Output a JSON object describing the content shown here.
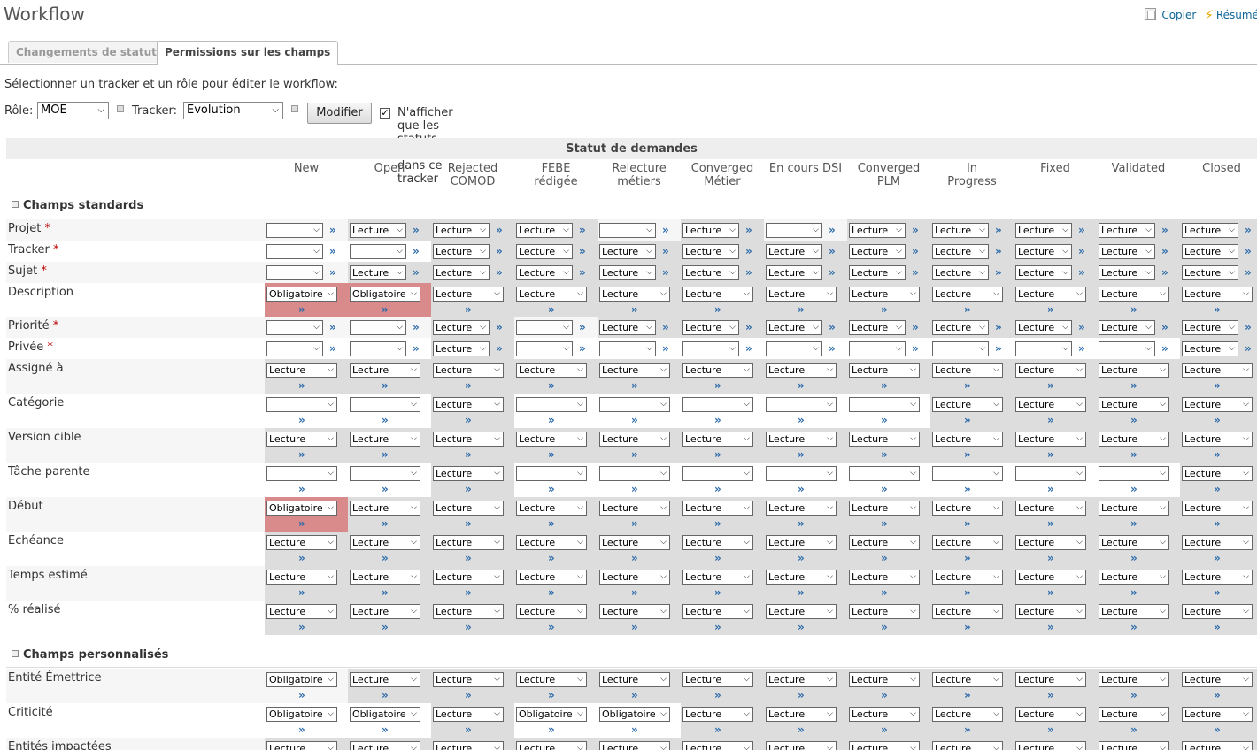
{
  "header": {
    "title": "Workflow",
    "copy_label": "Copier",
    "summary_label": "Résumé"
  },
  "tabs": [
    {
      "label": "Changements de statut"
    },
    {
      "label": "Permissions sur les champs"
    }
  ],
  "intro_text": "Sélectionner un tracker et un rôle pour éditer le workflow:",
  "filters": {
    "role_label": "Rôle:",
    "role_value": "MOE",
    "tracker_label": "Tracker:",
    "tracker_value": "Evolution",
    "submit_label": "Modifier",
    "used_statuses_label": "N'afficher que les statuts utilisés dans ce tracker",
    "used_statuses_checked": true
  },
  "table": {
    "group_header": "Statut de demandes",
    "statuses": [
      "New",
      "Open",
      "Rejected COMOD",
      "FEBE rédigée",
      "Relecture métiers",
      "Converged Métier",
      "En cours DSI",
      "Converged PLM",
      "In Progress",
      "Fixed",
      "Validated",
      "Closed"
    ],
    "sections": [
      {
        "title": "Champs standards",
        "rows": [
          {
            "label": "Projet",
            "required": true,
            "values": [
              "",
              "Lecture",
              "Lecture",
              "Lecture",
              "",
              "Lecture",
              "",
              "Lecture",
              "Lecture",
              "Lecture",
              "Lecture",
              "Lecture"
            ]
          },
          {
            "label": "Tracker",
            "required": true,
            "values": [
              "",
              "",
              "Lecture",
              "Lecture",
              "Lecture",
              "Lecture",
              "Lecture",
              "Lecture",
              "Lecture",
              "Lecture",
              "Lecture",
              "Lecture"
            ]
          },
          {
            "label": "Sujet",
            "required": true,
            "values": [
              "",
              "Lecture",
              "Lecture",
              "Lecture",
              "Lecture",
              "Lecture",
              "Lecture",
              "Lecture",
              "Lecture",
              "Lecture",
              "Lecture",
              "Lecture"
            ]
          },
          {
            "label": "Description",
            "required": false,
            "values": [
              "Obligatoire",
              "Obligatoire",
              "Lecture",
              "Lecture",
              "Lecture",
              "Lecture",
              "Lecture",
              "Lecture",
              "Lecture",
              "Lecture",
              "Lecture",
              "Lecture"
            ]
          },
          {
            "label": "Priorité",
            "required": true,
            "values": [
              "",
              "",
              "Lecture",
              "",
              "Lecture",
              "Lecture",
              "Lecture",
              "Lecture",
              "Lecture",
              "Lecture",
              "Lecture",
              "Lecture"
            ]
          },
          {
            "label": "Privée",
            "required": true,
            "values": [
              "",
              "",
              "Lecture",
              "",
              "",
              "",
              "",
              "",
              "",
              "",
              "",
              "Lecture"
            ]
          },
          {
            "label": "Assigné à",
            "required": false,
            "values": [
              "Lecture",
              "Lecture",
              "Lecture",
              "Lecture",
              "Lecture",
              "Lecture",
              "Lecture",
              "Lecture",
              "Lecture",
              "Lecture",
              "Lecture",
              "Lecture"
            ]
          },
          {
            "label": "Catégorie",
            "required": false,
            "values": [
              "",
              "",
              "Lecture",
              "",
              "",
              "",
              "",
              "",
              "Lecture",
              "Lecture",
              "Lecture",
              "Lecture"
            ]
          },
          {
            "label": "Version cible",
            "required": false,
            "values": [
              "Lecture",
              "Lecture",
              "Lecture",
              "Lecture",
              "Lecture",
              "Lecture",
              "Lecture",
              "Lecture",
              "Lecture",
              "Lecture",
              "Lecture",
              "Lecture"
            ]
          },
          {
            "label": "Tâche parente",
            "required": false,
            "values": [
              "",
              "",
              "Lecture",
              "",
              "",
              "",
              "",
              "",
              "",
              "",
              "",
              "Lecture"
            ]
          },
          {
            "label": "Début",
            "required": false,
            "values": [
              "Obligatoire",
              "Lecture",
              "Lecture",
              "Lecture",
              "Lecture",
              "Lecture",
              "Lecture",
              "Lecture",
              "Lecture",
              "Lecture",
              "Lecture",
              "Lecture"
            ]
          },
          {
            "label": "Echéance",
            "required": false,
            "values": [
              "Lecture",
              "Lecture",
              "Lecture",
              "Lecture",
              "Lecture",
              "Lecture",
              "Lecture",
              "Lecture",
              "Lecture",
              "Lecture",
              "Lecture",
              "Lecture"
            ]
          },
          {
            "label": "Temps estimé",
            "required": false,
            "values": [
              "Lecture",
              "Lecture",
              "Lecture",
              "Lecture",
              "Lecture",
              "Lecture",
              "Lecture",
              "Lecture",
              "Lecture",
              "Lecture",
              "Lecture",
              "Lecture"
            ]
          },
          {
            "label": "% réalisé",
            "required": false,
            "values": [
              "Lecture",
              "Lecture",
              "Lecture",
              "Lecture",
              "Lecture",
              "Lecture",
              "Lecture",
              "Lecture",
              "Lecture",
              "Lecture",
              "Lecture",
              "Lecture"
            ]
          }
        ]
      },
      {
        "title": "Champs personnalisés",
        "rows": [
          {
            "label": "Entité Émettrice",
            "required": false,
            "values": [
              "Obligatoire",
              "Lecture",
              "Lecture",
              "Lecture",
              "Lecture",
              "Lecture",
              "Lecture",
              "Lecture",
              "Lecture",
              "Lecture",
              "Lecture",
              "Lecture"
            ]
          },
          {
            "label": "Criticité",
            "required": false,
            "values": [
              "Obligatoire",
              "Obligatoire",
              "Lecture",
              "Obligatoire",
              "Obligatoire",
              "Lecture",
              "Lecture",
              "Lecture",
              "Lecture",
              "Lecture",
              "Lecture",
              "Lecture"
            ]
          },
          {
            "label": "Entités impactées",
            "required": false,
            "values": [
              "Lecture",
              "Lecture",
              "Lecture",
              "Lecture",
              "Lecture",
              "Lecture",
              "Lecture",
              "Lecture",
              "Lecture",
              "Lecture",
              "Lecture",
              "Lecture"
            ]
          }
        ]
      }
    ]
  },
  "colors": {
    "required_marker": "#bb0000",
    "mandatory_highlight": "#d98a8a",
    "readonly_cell": "#dddddd",
    "link": "#116699"
  }
}
